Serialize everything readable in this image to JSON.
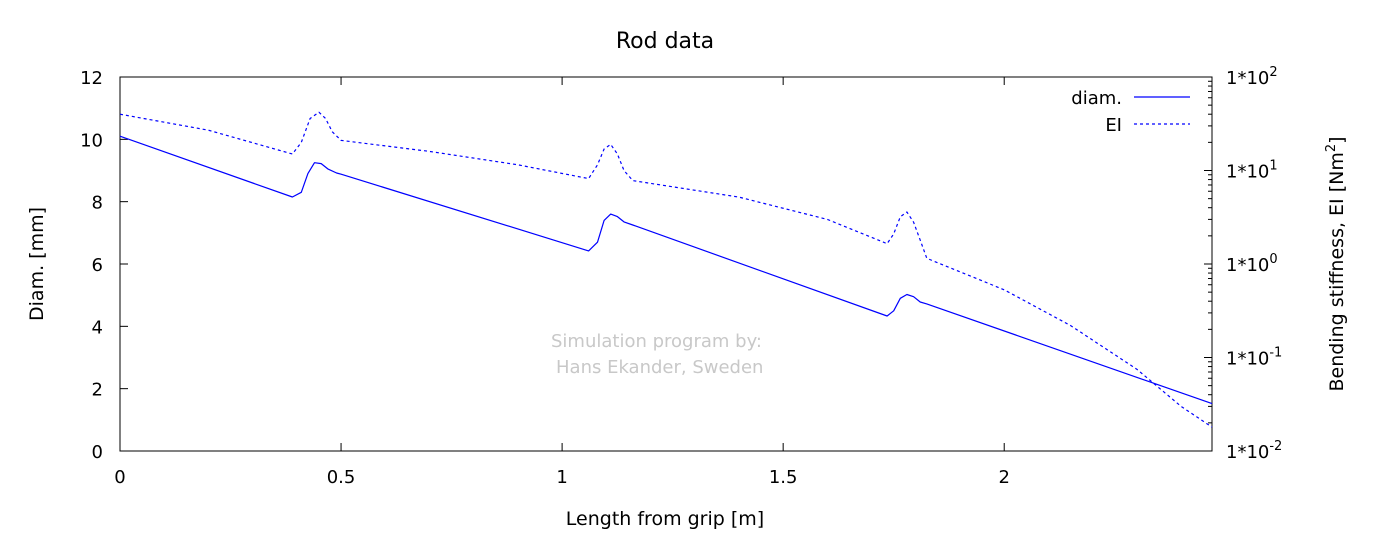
{
  "chart_data": {
    "type": "line",
    "title": "Rod data",
    "xlabel": "Length from grip [m]",
    "ylabel": "Diam. [mm]",
    "y2label_main": "Bending stiffness, EI [Nm",
    "y2label_sup": "2",
    "y2label_end": "]",
    "xlim": [
      0,
      2.47
    ],
    "ylim": [
      0,
      12
    ],
    "y2lim": [
      0.01,
      100
    ],
    "y2_scale": "log",
    "x_ticks": [
      0,
      0.5,
      1,
      1.5,
      2
    ],
    "x_tick_labels": [
      "0",
      "0.5",
      "1",
      "1.5",
      "2"
    ],
    "y_ticks": [
      0,
      2,
      4,
      6,
      8,
      10,
      12
    ],
    "y_tick_labels": [
      "0",
      "2",
      "4",
      "6",
      "8",
      "10",
      "12"
    ],
    "y2_ticks": [
      {
        "value": 0.01,
        "base": "1*10",
        "exp": "-2"
      },
      {
        "value": 0.1,
        "base": "1*10",
        "exp": "-1"
      },
      {
        "value": 1,
        "base": "1*10",
        "exp": "0"
      },
      {
        "value": 10,
        "base": "1*10",
        "exp": "1"
      },
      {
        "value": 100,
        "base": "1*10",
        "exp": "2"
      }
    ],
    "legend_position": "top-right",
    "series": [
      {
        "name": "diam.",
        "axis": "left",
        "style": "solid",
        "color": "#0000ff",
        "x": [
          0,
          0.39,
          0.41,
          0.425,
          0.44,
          0.455,
          0.47,
          0.49,
          0.5,
          1.06,
          1.08,
          1.095,
          1.11,
          1.125,
          1.14,
          1.16,
          1.735,
          1.75,
          1.765,
          1.78,
          1.795,
          1.81,
          1.825,
          2.47
        ],
        "y": [
          10.1,
          8.15,
          8.3,
          8.9,
          9.25,
          9.22,
          9.05,
          8.92,
          8.88,
          6.42,
          6.7,
          7.4,
          7.6,
          7.52,
          7.35,
          7.25,
          4.33,
          4.5,
          4.9,
          5.02,
          4.95,
          4.78,
          4.72,
          1.52
        ]
      },
      {
        "name": "EI",
        "axis": "right",
        "style": "dashed",
        "color": "#0000ff",
        "x": [
          0,
          0.2,
          0.39,
          0.41,
          0.43,
          0.45,
          0.465,
          0.48,
          0.5,
          0.7,
          0.9,
          1.06,
          1.08,
          1.095,
          1.11,
          1.125,
          1.14,
          1.16,
          1.4,
          1.6,
          1.735,
          1.75,
          1.765,
          1.78,
          1.795,
          1.81,
          1.825,
          2.0,
          2.15,
          2.3,
          2.4,
          2.47
        ],
        "y": [
          40,
          27,
          15,
          20,
          36,
          42,
          36,
          26,
          21,
          16,
          11.5,
          8.2,
          11.5,
          17,
          19,
          15,
          10,
          7.8,
          5.2,
          3,
          1.65,
          2.1,
          3.2,
          3.6,
          2.8,
          1.8,
          1.15,
          0.53,
          0.22,
          0.075,
          0.03,
          0.018
        ]
      }
    ],
    "annotation": [
      "Simulation program by:",
      "Hans Ekander, Sweden"
    ]
  }
}
